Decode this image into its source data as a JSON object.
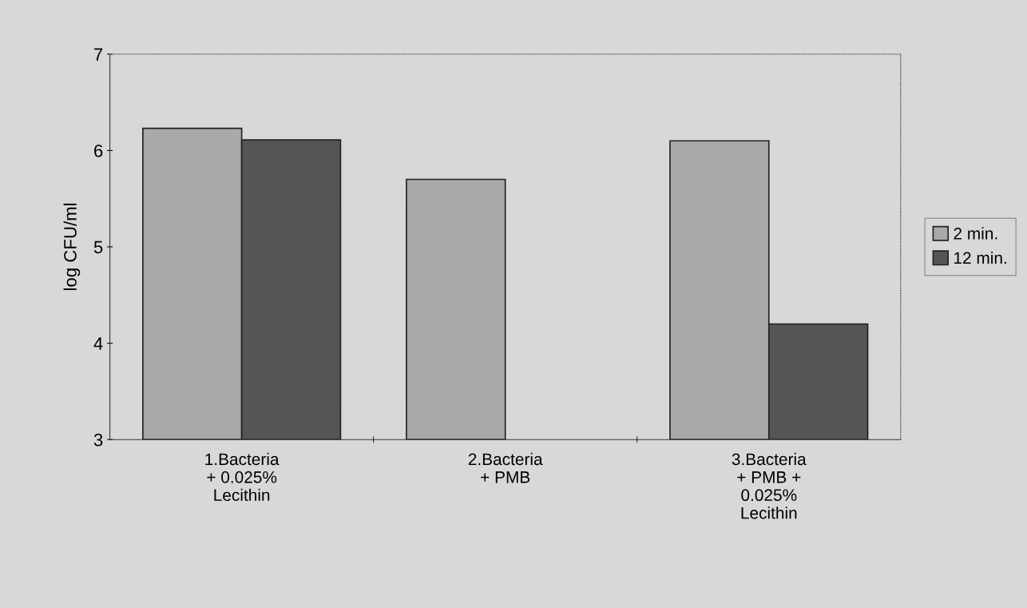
{
  "chart_data": {
    "type": "bar",
    "ylabel": "log CFU/ml",
    "categories": [
      "1.Bacteria\n+ 0.025%\nLecithin",
      "2.Bacteria\n+ PMB",
      "3.Bacteria\n+ PMB +\n0.025%\nLecithin"
    ],
    "series": [
      {
        "name": "2 min.",
        "color": "#a9a9a9",
        "values": [
          6.23,
          5.7,
          6.1
        ]
      },
      {
        "name": "12 min.",
        "color": "#555555",
        "values": [
          6.11,
          null,
          4.2
        ]
      }
    ],
    "ylim": [
      3,
      7
    ],
    "yticks": [
      3,
      4,
      5,
      6,
      7
    ],
    "grid": false,
    "legend": "right"
  }
}
